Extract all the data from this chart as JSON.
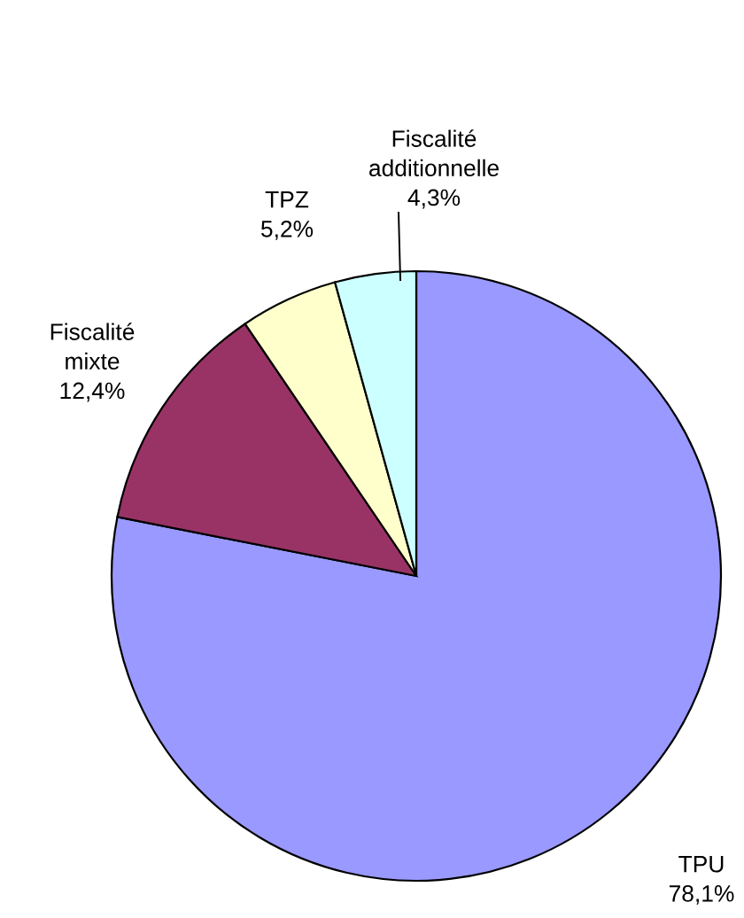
{
  "chart_data": {
    "type": "pie",
    "categories": [
      "TPU",
      "Fiscalité mixte",
      "TPZ",
      "Fiscalité additionnelle"
    ],
    "values": [
      78.1,
      12.4,
      5.2,
      4.3
    ],
    "value_labels": [
      "78,1%",
      "12,4%",
      "5,2%",
      "4,3%"
    ],
    "colors": [
      "#9999ff",
      "#993366",
      "#ffffcc",
      "#ccffff"
    ],
    "legend": false
  }
}
